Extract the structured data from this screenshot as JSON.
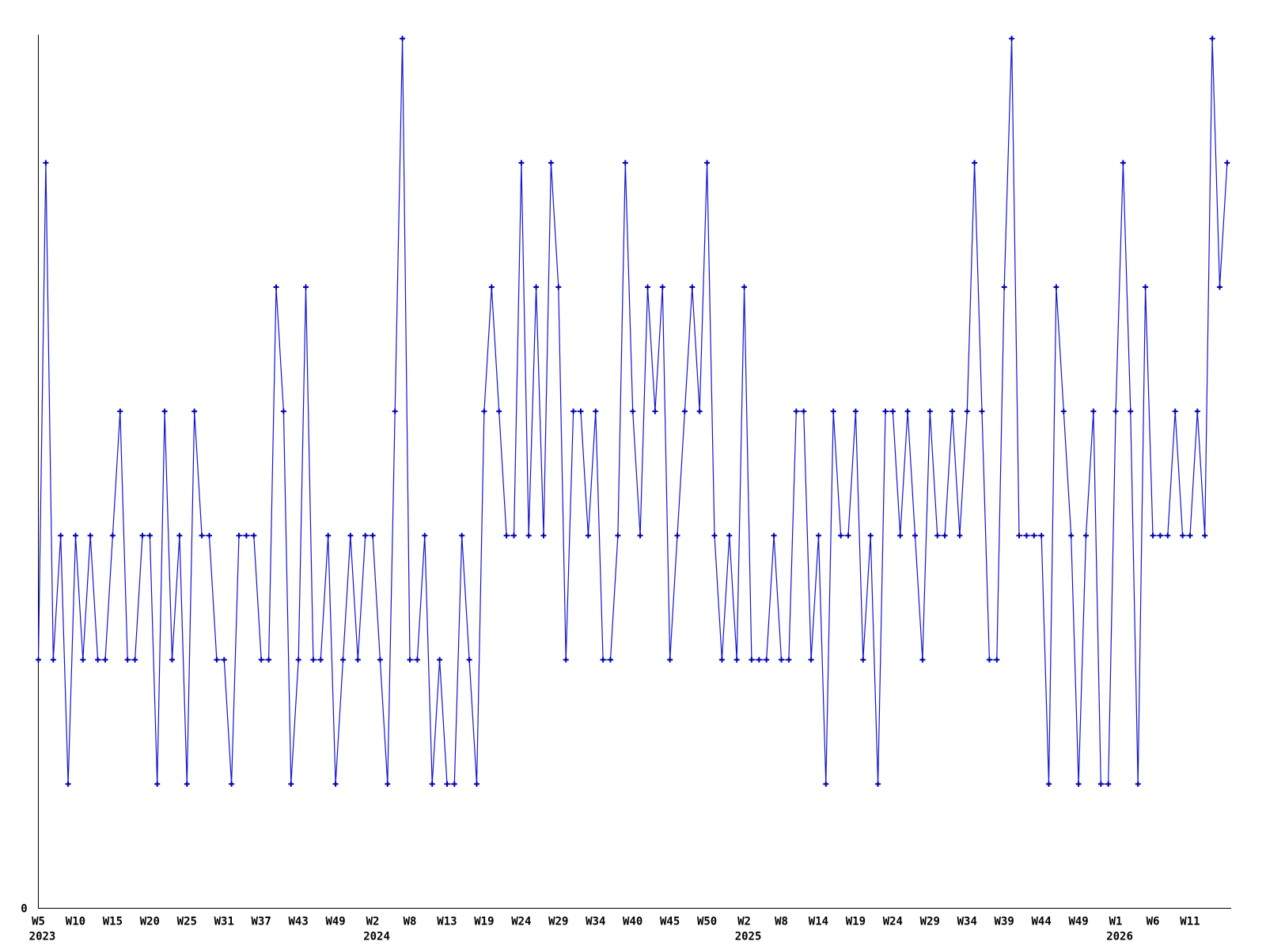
{
  "chart_data": {
    "type": "line",
    "title": "",
    "xlabel": "",
    "ylabel": "",
    "y_origin_label": "0",
    "legend": "none",
    "grid": false,
    "marker": "plus",
    "ylim": [
      0,
      7.3
    ],
    "colors": {
      "line": "#1414d2",
      "marker": "#0000b4",
      "axis": "#000000",
      "background": "#ffffff",
      "text": "#000000"
    },
    "x_tick_step": 5,
    "x_tick_labels": [
      "W5",
      "W10",
      "W15",
      "W20",
      "W25",
      "W31",
      "W37",
      "W43",
      "W49",
      "W2",
      "W8",
      "W13",
      "W19",
      "W24",
      "W29",
      "W34",
      "W40",
      "W45",
      "W50",
      "W2",
      "W8",
      "W14",
      "W19",
      "W24",
      "W29",
      "W34",
      "W39",
      "W44",
      "W49",
      "W1",
      "W6",
      "W11"
    ],
    "year_labels": [
      {
        "text": "2023",
        "tick_index": 0
      },
      {
        "text": "2024",
        "tick_index": 9
      },
      {
        "text": "2025",
        "tick_index": 19
      },
      {
        "text": "2026",
        "tick_index": 29
      }
    ],
    "values": [
      2,
      6,
      2,
      3,
      1,
      3,
      2,
      3,
      2,
      2,
      3,
      4,
      2,
      2,
      3,
      3,
      1,
      4,
      2,
      3,
      1,
      4,
      3,
      3,
      2,
      2,
      1,
      3,
      3,
      3,
      2,
      2,
      5,
      4,
      1,
      2,
      5,
      2,
      2,
      3,
      1,
      2,
      3,
      2,
      3,
      3,
      2,
      1,
      4,
      7,
      2,
      2,
      3,
      1,
      2,
      1,
      1,
      3,
      2,
      1,
      4,
      5,
      4,
      3,
      3,
      6,
      3,
      5,
      3,
      6,
      5,
      2,
      4,
      4,
      3,
      4,
      2,
      2,
      3,
      6,
      4,
      3,
      5,
      4,
      5,
      2,
      3,
      4,
      5,
      4,
      6,
      3,
      2,
      3,
      2,
      5,
      2,
      2,
      2,
      3,
      2,
      2,
      4,
      4,
      2,
      3,
      1,
      4,
      3,
      3,
      4,
      2,
      3,
      1,
      4,
      4,
      3,
      4,
      3,
      2,
      4,
      3,
      3,
      4,
      3,
      4,
      6,
      4,
      2,
      2,
      5,
      7,
      3,
      3,
      3,
      3,
      1,
      5,
      4,
      3,
      1,
      3,
      4,
      1,
      1,
      4,
      6,
      4,
      1,
      5,
      3,
      3,
      3,
      4,
      3,
      3,
      4,
      3,
      7,
      5,
      6
    ]
  }
}
